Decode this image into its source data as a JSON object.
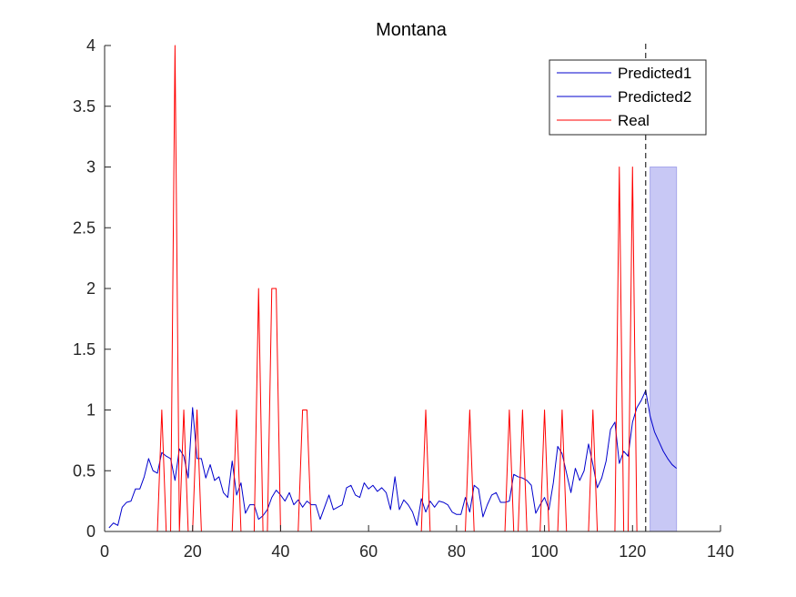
{
  "chart_data": {
    "type": "line",
    "title": "Montana",
    "xlabel": "",
    "ylabel": "",
    "xlim": [
      0,
      140
    ],
    "ylim": [
      0,
      4
    ],
    "xticks": [
      0,
      20,
      40,
      60,
      80,
      100,
      120,
      140
    ],
    "yticks": [
      0,
      0.5,
      1,
      1.5,
      2,
      2.5,
      3,
      3.5,
      4
    ],
    "xtick_labels": [
      "0",
      "20",
      "40",
      "60",
      "80",
      "100",
      "120",
      "140"
    ],
    "ytick_labels": [
      "0",
      "0.5",
      "1",
      "1.5",
      "2",
      "2.5",
      "3",
      "3.5",
      "4"
    ],
    "grid": false,
    "legend_position": "top-right",
    "vline_x": 123,
    "band": {
      "x": [
        124,
        130
      ],
      "y": [
        0,
        3
      ],
      "color": "#c8c8f5"
    },
    "series": [
      {
        "name": "Predicted1",
        "color": "#0000cd",
        "x": [
          1,
          2,
          3,
          4,
          5,
          6,
          7,
          8,
          9,
          10,
          11,
          12,
          13,
          14,
          15,
          16,
          17,
          18,
          19,
          20,
          21,
          22,
          23,
          24,
          25,
          26,
          27,
          28,
          29,
          30,
          31,
          32,
          33,
          34,
          35,
          36,
          37,
          38,
          39,
          40,
          41,
          42,
          43,
          44,
          45,
          46,
          47,
          48,
          49,
          50,
          51,
          52,
          53,
          54,
          55,
          56,
          57,
          58,
          59,
          60,
          61,
          62,
          63,
          64,
          65,
          66,
          67,
          68,
          69,
          70,
          71,
          72,
          73,
          74,
          75,
          76,
          77,
          78,
          79,
          80,
          81,
          82,
          83,
          84,
          85,
          86,
          87,
          88,
          89,
          90,
          91,
          92,
          93,
          94,
          95,
          96,
          97,
          98,
          99,
          100,
          101,
          102,
          103,
          104,
          105,
          106,
          107,
          108,
          109,
          110,
          111,
          112,
          113,
          114,
          115,
          116,
          117,
          118,
          119,
          120,
          121,
          122,
          123
        ],
        "values": [
          0.03,
          0.07,
          0.05,
          0.2,
          0.24,
          0.25,
          0.35,
          0.35,
          0.45,
          0.6,
          0.5,
          0.48,
          0.65,
          0.62,
          0.6,
          0.42,
          0.68,
          0.62,
          0.44,
          1.02,
          0.6,
          0.6,
          0.44,
          0.55,
          0.42,
          0.45,
          0.32,
          0.28,
          0.58,
          0.3,
          0.4,
          0.15,
          0.22,
          0.22,
          0.1,
          0.13,
          0.18,
          0.28,
          0.34,
          0.3,
          0.25,
          0.32,
          0.22,
          0.26,
          0.2,
          0.25,
          0.22,
          0.22,
          0.1,
          0.2,
          0.3,
          0.18,
          0.2,
          0.22,
          0.36,
          0.38,
          0.3,
          0.28,
          0.4,
          0.35,
          0.38,
          0.33,
          0.36,
          0.32,
          0.18,
          0.45,
          0.18,
          0.26,
          0.22,
          0.16,
          0.05,
          0.27,
          0.16,
          0.25,
          0.2,
          0.25,
          0.24,
          0.22,
          0.16,
          0.14,
          0.14,
          0.28,
          0.16,
          0.38,
          0.35,
          0.12,
          0.22,
          0.3,
          0.32,
          0.24,
          0.24,
          0.25,
          0.47,
          0.45,
          0.44,
          0.42,
          0.38,
          0.15,
          0.22,
          0.28,
          0.18,
          0.4,
          0.7,
          0.64,
          0.48,
          0.32,
          0.52,
          0.42,
          0.5,
          0.72,
          0.55,
          0.36,
          0.44,
          0.58,
          0.84,
          0.9,
          0.56,
          0.66,
          0.62,
          0.9,
          1.02,
          1.08,
          1.16
        ]
      },
      {
        "name": "Predicted2",
        "color": "#0000cd",
        "x": [
          123,
          124,
          125,
          126,
          127,
          128,
          129,
          130
        ],
        "values": [
          1.16,
          0.95,
          0.82,
          0.74,
          0.66,
          0.6,
          0.55,
          0.52
        ]
      },
      {
        "name": "Real",
        "color": "#ff0000",
        "x": [
          1,
          12,
          13,
          14,
          15,
          16,
          17,
          18,
          19,
          20,
          21,
          22,
          29,
          30,
          31,
          34,
          35,
          36,
          37,
          38,
          39,
          40,
          44,
          45,
          46,
          47,
          72,
          73,
          74,
          82,
          83,
          84,
          91,
          92,
          93,
          94,
          95,
          96,
          99,
          100,
          101,
          103,
          104,
          105,
          110,
          111,
          112,
          116,
          117,
          118,
          119,
          120,
          121,
          122,
          123
        ],
        "values": [
          0,
          0,
          1,
          0,
          0,
          4,
          0,
          1,
          0,
          0,
          1,
          0,
          0,
          1,
          0,
          0,
          2,
          0,
          0,
          2,
          2,
          0,
          0,
          1,
          1,
          0,
          0,
          1,
          0,
          0,
          1,
          0,
          0,
          1,
          0,
          0,
          1,
          0,
          0,
          1,
          0,
          0,
          1,
          0,
          0,
          1,
          0,
          0,
          3,
          0,
          0,
          3,
          0,
          0,
          0
        ]
      }
    ]
  }
}
